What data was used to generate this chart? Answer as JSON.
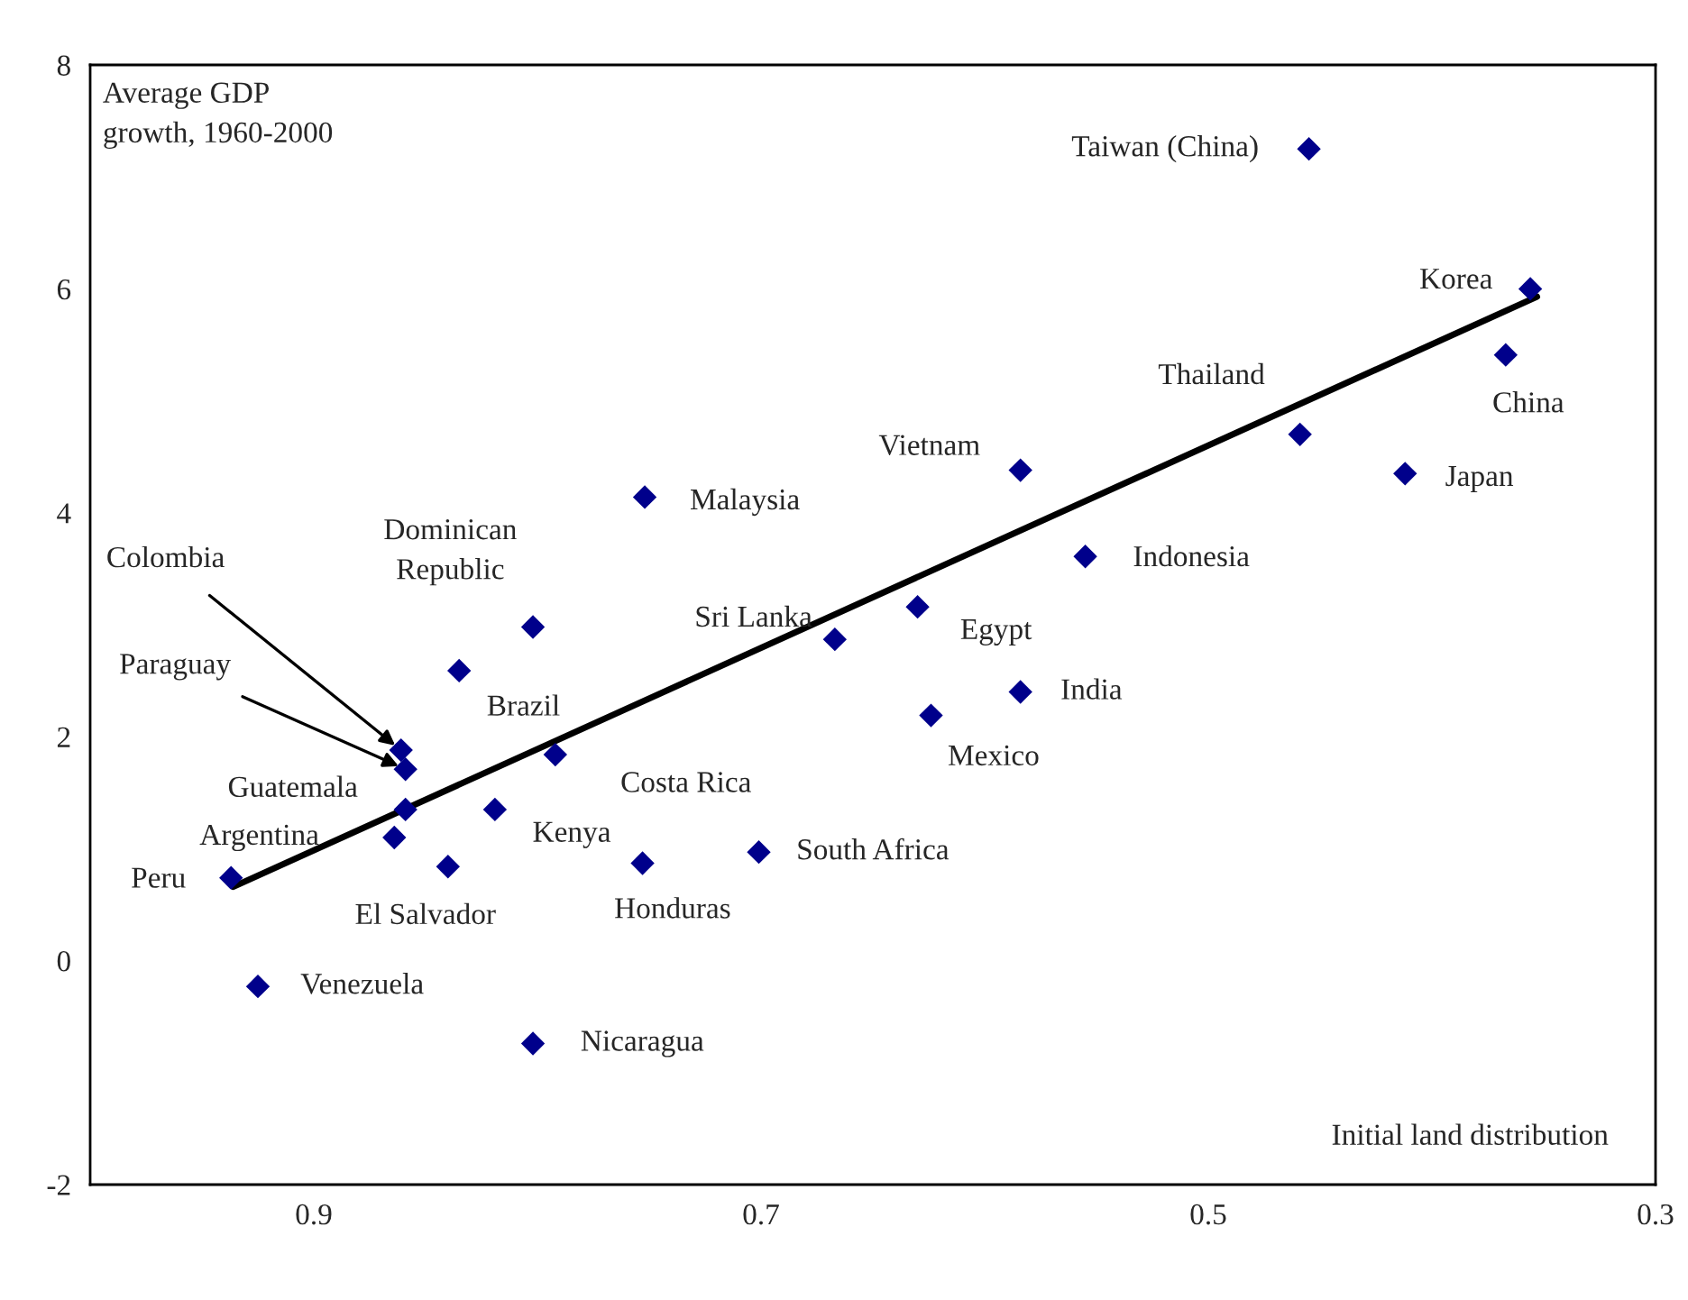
{
  "chart_data": {
    "type": "scatter",
    "ylabel": "Average GDP\ngrowth, 1960-2000",
    "xlabel": "Initial land distribution",
    "xlim": [
      1.0,
      0.3
    ],
    "xticks": [
      0.9,
      0.7,
      0.5,
      0.3
    ],
    "ylim": [
      -2,
      8
    ],
    "yticks": [
      {
        "value": -2,
        "label": "-2"
      },
      0,
      2,
      4,
      6,
      8
    ],
    "grid": false,
    "legend": false,
    "series": [
      {
        "color": "#00008b",
        "marker": "diamond",
        "x": [
          0.455,
          0.356,
          0.367,
          0.459,
          0.412,
          0.584,
          0.555,
          0.752,
          0.63,
          0.667,
          0.584,
          0.624,
          0.802,
          0.835,
          0.861,
          0.859,
          0.792,
          0.859,
          0.819,
          0.864,
          0.84,
          0.753,
          0.701,
          0.937,
          0.925,
          0.802
        ],
        "values": [
          7.25,
          6.0,
          5.41,
          4.7,
          4.35,
          4.38,
          3.61,
          4.14,
          3.16,
          2.87,
          2.4,
          2.19,
          2.98,
          2.59,
          1.88,
          1.71,
          1.84,
          1.35,
          1.35,
          1.1,
          0.84,
          0.87,
          0.97,
          0.74,
          -0.23,
          -0.74
        ]
      },
      {
        "type": "line",
        "color": "#000000",
        "marker": "none",
        "line_style": "solid",
        "x": [
          0.936,
          0.353
        ],
        "values": [
          0.66,
          5.93
        ]
      }
    ],
    "annotations": [
      {
        "text": "Taiwan (China)",
        "x": 0.455,
        "y": 7.25
      },
      {
        "text": "Korea",
        "x": 0.356,
        "y": 6.0
      },
      {
        "text": "China",
        "x": 0.367,
        "y": 5.41
      },
      {
        "text": "Thailand",
        "x": 0.459,
        "y": 4.7
      },
      {
        "text": "Japan",
        "x": 0.412,
        "y": 4.35
      },
      {
        "text": "Vietnam",
        "x": 0.584,
        "y": 4.38
      },
      {
        "text": "Indonesia",
        "x": 0.555,
        "y": 3.61
      },
      {
        "text": "Malaysia",
        "x": 0.752,
        "y": 4.14
      },
      {
        "text": "Egypt",
        "x": 0.63,
        "y": 3.16
      },
      {
        "text": "Sri Lanka",
        "x": 0.667,
        "y": 2.87
      },
      {
        "text": "India",
        "x": 0.584,
        "y": 2.4
      },
      {
        "text": "Mexico",
        "x": 0.624,
        "y": 2.19
      },
      {
        "text": "Dominican\nRepublic",
        "x": 0.802,
        "y": 2.98
      },
      {
        "text": "Brazil",
        "x": 0.835,
        "y": 2.59
      },
      {
        "text": "Colombia",
        "x": 0.861,
        "y": 1.88
      },
      {
        "text": "Paraguay",
        "x": 0.859,
        "y": 1.71
      },
      {
        "text": "Costa Rica",
        "x": 0.792,
        "y": 1.84
      },
      {
        "text": "Guatemala",
        "x": 0.859,
        "y": 1.35
      },
      {
        "text": "Kenya",
        "x": 0.819,
        "y": 1.35
      },
      {
        "text": "Argentina",
        "x": 0.864,
        "y": 1.1
      },
      {
        "text": "El Salvador",
        "x": 0.84,
        "y": 0.84
      },
      {
        "text": "Honduras",
        "x": 0.753,
        "y": 0.87
      },
      {
        "text": "South Africa",
        "x": 0.701,
        "y": 0.97
      },
      {
        "text": "Peru",
        "x": 0.937,
        "y": 0.74
      },
      {
        "text": "Venezuela",
        "x": 0.925,
        "y": -0.23
      },
      {
        "text": "Nicaragua",
        "x": 0.802,
        "y": -0.74
      }
    ]
  }
}
